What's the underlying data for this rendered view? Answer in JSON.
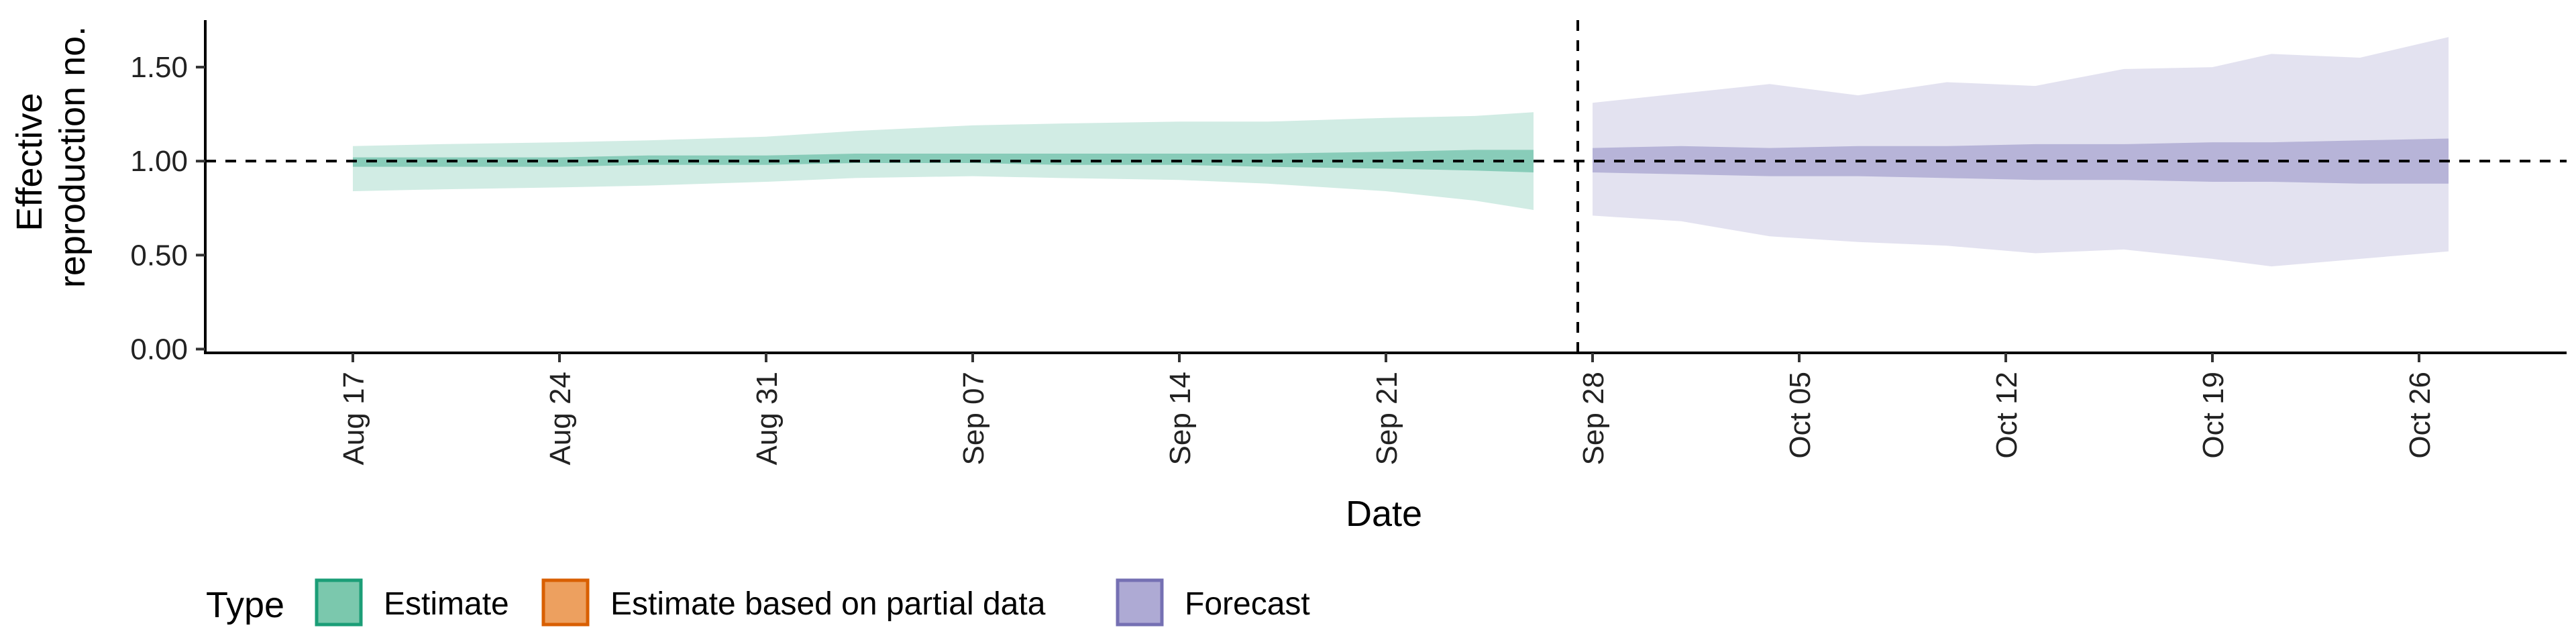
{
  "chart_data": {
    "type": "area",
    "xlabel": "Date",
    "ylabel_lines": [
      "Effective",
      "reproduction no."
    ],
    "ylim": [
      -0.02,
      1.75
    ],
    "y_ticks": [
      "0.00",
      "0.50",
      "1.00",
      "1.50"
    ],
    "x_range": [
      "2020-08-12",
      "2020-10-31"
    ],
    "x_ticks": [
      "Aug 17",
      "Aug 24",
      "Aug 31",
      "Sep 07",
      "Sep 14",
      "Sep 21",
      "Sep 28",
      "Oct 05",
      "Oct 12",
      "Oct 19",
      "Oct 26"
    ],
    "x_tick_dates": [
      "2020-08-17",
      "2020-08-24",
      "2020-08-31",
      "2020-09-07",
      "2020-09-14",
      "2020-09-21",
      "2020-09-28",
      "2020-10-05",
      "2020-10-12",
      "2020-10-19",
      "2020-10-26"
    ],
    "reference_line_y": 1.0,
    "forecast_start_date": "2020-09-27",
    "grid": false,
    "legend": {
      "title": "Type",
      "placement": "bottom-left",
      "items": [
        {
          "label": "Estimate",
          "fill": "#7bc8ad",
          "stroke": "#1b9e77"
        },
        {
          "label": "Estimate based on partial data",
          "fill": "#eda05f",
          "stroke": "#d95f02"
        },
        {
          "label": "Forecast",
          "fill": "#aeaad4",
          "stroke": "#7570b3"
        }
      ]
    },
    "series": [
      {
        "name": "Estimate",
        "color": "#1b9e77",
        "x": [
          "2020-08-17",
          "2020-08-20",
          "2020-08-24",
          "2020-08-27",
          "2020-08-31",
          "2020-09-03",
          "2020-09-07",
          "2020-09-10",
          "2020-09-14",
          "2020-09-17",
          "2020-09-21",
          "2020-09-24",
          "2020-09-26"
        ],
        "outer_lower": [
          0.84,
          0.85,
          0.86,
          0.87,
          0.89,
          0.91,
          0.92,
          0.91,
          0.9,
          0.88,
          0.84,
          0.79,
          0.74
        ],
        "outer_upper": [
          1.08,
          1.09,
          1.1,
          1.11,
          1.13,
          1.16,
          1.19,
          1.2,
          1.21,
          1.21,
          1.23,
          1.24,
          1.26
        ],
        "inner_lower": [
          0.97,
          0.97,
          0.97,
          0.98,
          0.98,
          0.99,
          0.99,
          0.98,
          0.98,
          0.97,
          0.96,
          0.95,
          0.94
        ],
        "inner_upper": [
          1.02,
          1.02,
          1.02,
          1.03,
          1.03,
          1.04,
          1.04,
          1.04,
          1.04,
          1.04,
          1.05,
          1.06,
          1.06
        ]
      },
      {
        "name": "Forecast",
        "color": "#7570b3",
        "x": [
          "2020-09-28",
          "2020-10-01",
          "2020-10-04",
          "2020-10-07",
          "2020-10-10",
          "2020-10-13",
          "2020-10-16",
          "2020-10-19",
          "2020-10-21",
          "2020-10-24",
          "2020-10-27"
        ],
        "outer_lower": [
          0.71,
          0.68,
          0.6,
          0.57,
          0.55,
          0.51,
          0.53,
          0.48,
          0.44,
          0.48,
          0.52
        ],
        "outer_upper": [
          1.31,
          1.36,
          1.41,
          1.35,
          1.42,
          1.4,
          1.49,
          1.5,
          1.57,
          1.55,
          1.66
        ],
        "inner_lower": [
          0.94,
          0.93,
          0.92,
          0.92,
          0.91,
          0.9,
          0.9,
          0.89,
          0.89,
          0.88,
          0.88
        ],
        "inner_upper": [
          1.07,
          1.08,
          1.07,
          1.08,
          1.08,
          1.09,
          1.09,
          1.1,
          1.1,
          1.11,
          1.12
        ]
      }
    ]
  }
}
